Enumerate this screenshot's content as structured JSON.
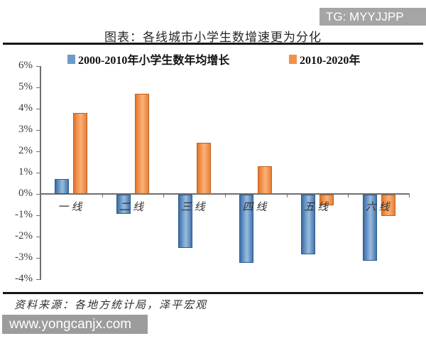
{
  "badge": {
    "label": "TG: MYYJJPP"
  },
  "header": {
    "title": "图表：各线城市小学生数增速更为分化"
  },
  "legend": [
    {
      "label": "2000-2010年小学生数年均增长",
      "color": "#6d9bca"
    },
    {
      "label": "2010-2020年",
      "color": "#f2904a"
    }
  ],
  "footer": {
    "source": "资料来源：各地方统计局，泽平宏观",
    "watermark": "www.yongcanjx.com"
  },
  "chart_data": {
    "type": "bar",
    "title": "图表：各线城市小学生数增速更为分化",
    "categories": [
      "一线",
      "二线",
      "三线",
      "四线",
      "五线",
      "六线"
    ],
    "series": [
      {
        "name": "2000-2010年小学生数年均增长",
        "color": "#6d9bca",
        "values": [
          0.7,
          -0.9,
          -2.5,
          -3.2,
          -2.8,
          -3.1
        ]
      },
      {
        "name": "2010-2020年",
        "color": "#f2904a",
        "values": [
          3.8,
          4.7,
          2.4,
          1.3,
          -0.5,
          -1.0
        ]
      }
    ],
    "xlabel": "",
    "ylabel": "",
    "ylim": [
      -4,
      6
    ],
    "yticks": [
      6,
      5,
      4,
      3,
      2,
      1,
      0,
      -1,
      -2,
      -3,
      -4
    ],
    "ytick_suffix": "%",
    "grid": false,
    "legend_position": "top"
  }
}
